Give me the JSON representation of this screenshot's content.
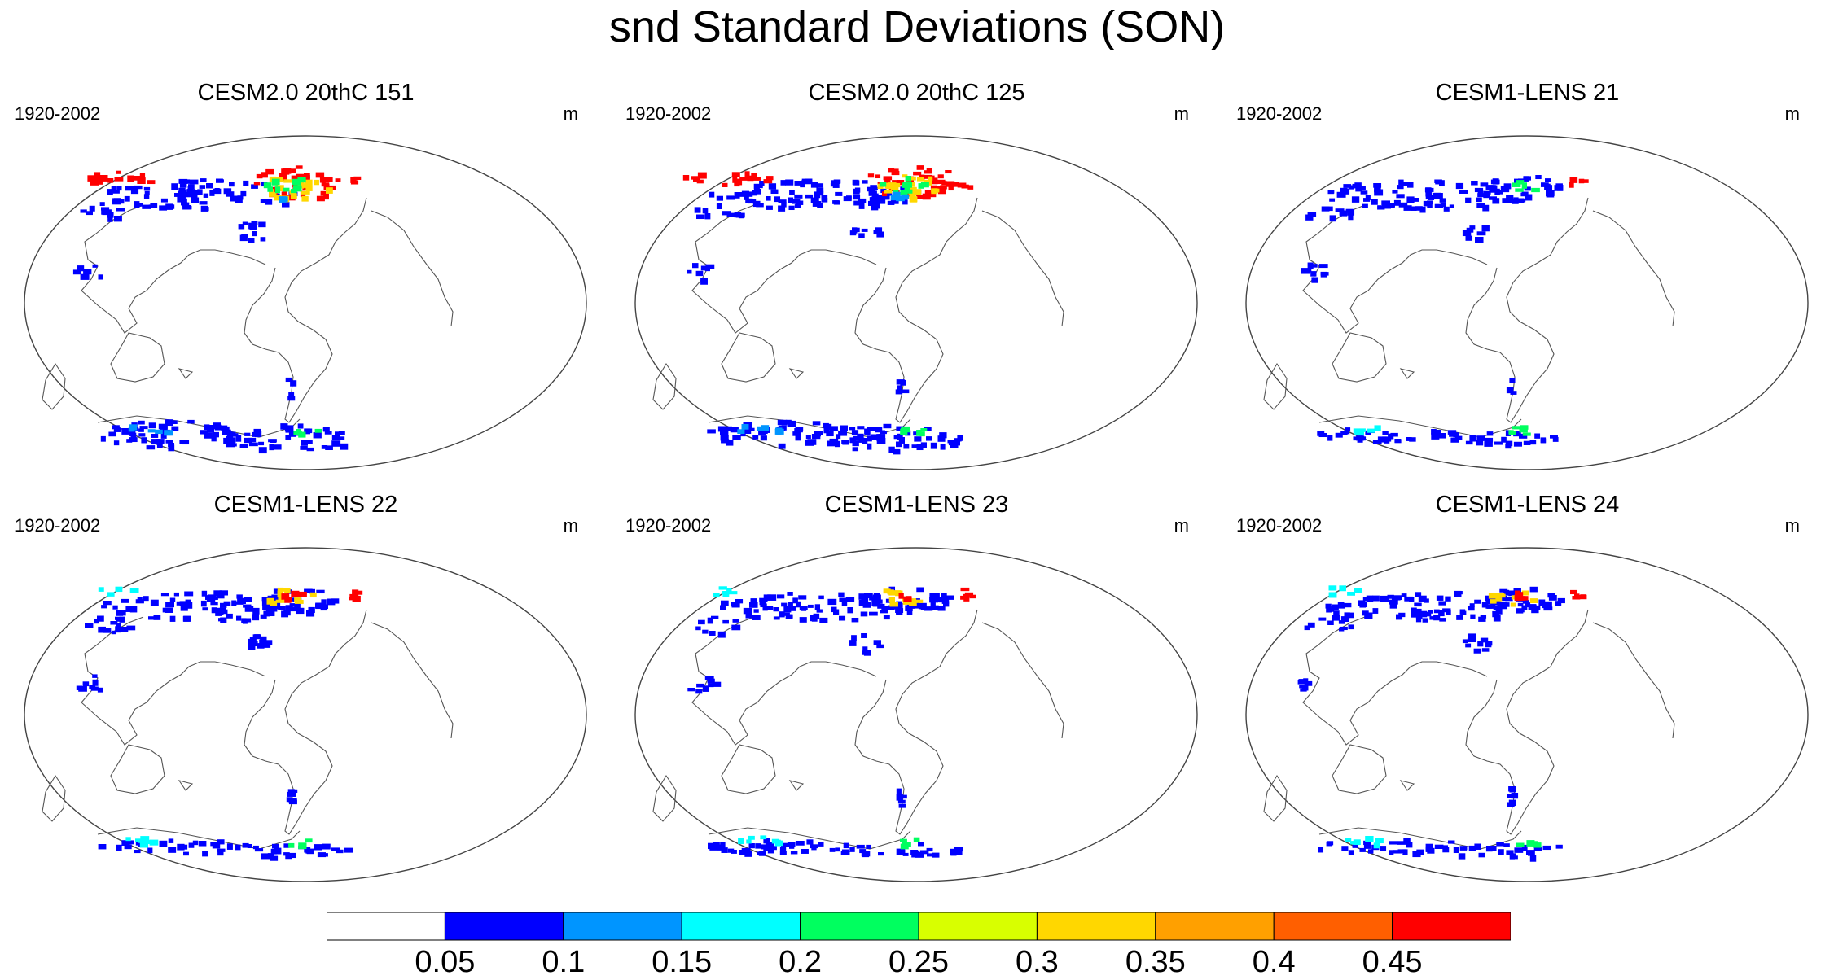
{
  "title": "snd Standard Deviations (SON)",
  "panels": [
    {
      "title": "CESM2.0 20thC 151",
      "period": "1920-2002",
      "units": "m",
      "intensity": "high"
    },
    {
      "title": "CESM2.0 20thC 125",
      "period": "1920-2002",
      "units": "m",
      "intensity": "high"
    },
    {
      "title": "CESM1-LENS 21",
      "period": "1920-2002",
      "units": "m",
      "intensity": "low"
    },
    {
      "title": "CESM1-LENS 22",
      "period": "1920-2002",
      "units": "m",
      "intensity": "mid"
    },
    {
      "title": "CESM1-LENS 23",
      "period": "1920-2002",
      "units": "m",
      "intensity": "mid"
    },
    {
      "title": "CESM1-LENS 24",
      "period": "1920-2002",
      "units": "m",
      "intensity": "mid"
    }
  ],
  "colorbar": {
    "colors": [
      "#ffffff",
      "#0000ff",
      "#0095ff",
      "#00ffff",
      "#00ff5f",
      "#d8ff00",
      "#ffd700",
      "#ffa000",
      "#ff5f00",
      "#ff0000"
    ],
    "labels": [
      "0.05",
      "0.1",
      "0.15",
      "0.2",
      "0.25",
      "0.3",
      "0.35",
      "0.4",
      "0.45"
    ]
  }
}
